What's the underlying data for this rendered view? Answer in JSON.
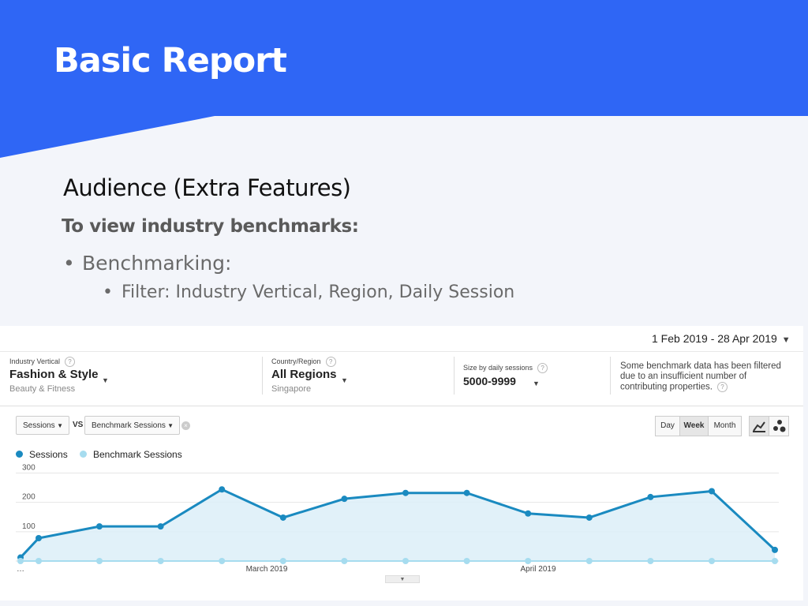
{
  "slide": {
    "title": "Basic Report",
    "heading": "Audience (Extra Features)",
    "subheading": "To view industry benchmarks:",
    "bullet_level1": "Benchmarking:",
    "bullet_level2": "Filter: Industry Vertical, Region, Daily Session",
    "bullet_mark": "•",
    "colors": {
      "banner": "#2f66f5",
      "background": "#f3f5fa"
    }
  },
  "report": {
    "date_range": "1 Feb 2019 - 28 Apr 2019",
    "filters": {
      "industry": {
        "label": "Industry Vertical",
        "value": "Fashion & Style",
        "sub": "Beauty & Fitness"
      },
      "region": {
        "label": "Country/Region",
        "value": "All Regions",
        "sub": "Singapore"
      },
      "size": {
        "label": "Size by daily sessions",
        "value": "5000-9999"
      },
      "help": "?"
    },
    "note": "Some benchmark data has been filtered due to an insufficient number of contributing properties.",
    "metric_primary": "Sessions",
    "metric_compare": "Benchmark Sessions",
    "vs_label": "VS",
    "remove_icon": "×",
    "granularity": {
      "day": "Day",
      "week": "Week",
      "month": "Month",
      "selected": "Week"
    },
    "icons": {
      "line_chart": "line-chart-icon",
      "motion_chart": "motion-chart-icon"
    }
  },
  "chart_data": {
    "type": "line",
    "title": "",
    "xlabel": "",
    "ylabel": "",
    "x_tick_labels": [
      "…",
      "March 2019",
      "April 2019"
    ],
    "y_ticks": [
      100,
      200,
      300
    ],
    "ylim": [
      0,
      320
    ],
    "grid": true,
    "legend": "top-left",
    "series": [
      {
        "name": "Sessions",
        "color": "#1a8ac0",
        "area": true,
        "values": [
          12,
          78,
          118,
          118,
          244,
          148,
          212,
          232,
          232,
          162,
          148,
          218,
          238,
          38
        ]
      },
      {
        "name": "Benchmark Sessions",
        "color": "#a6dcef",
        "area": false,
        "values": [
          0,
          0,
          0,
          0,
          0,
          0,
          0,
          0,
          0,
          0,
          0,
          0,
          0,
          0
        ]
      }
    ]
  }
}
